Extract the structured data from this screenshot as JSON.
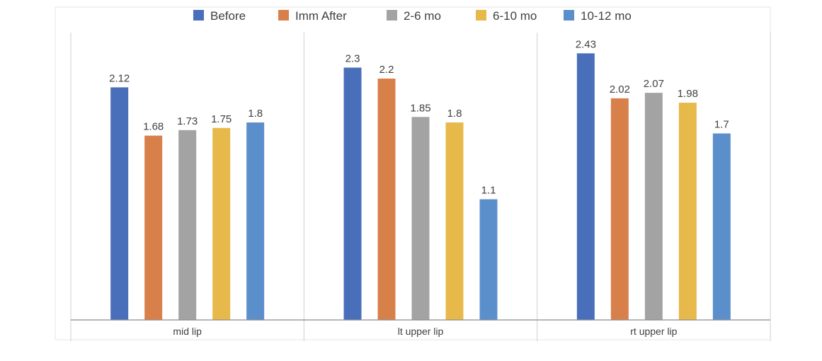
{
  "chart_data": {
    "type": "bar",
    "categories": [
      "mid lip",
      "lt upper lip",
      "rt upper lip"
    ],
    "series": [
      {
        "name": "Before",
        "color": "#4a6fba",
        "values": [
          2.12,
          2.3,
          2.43
        ]
      },
      {
        "name": "Imm After",
        "color": "#d8804a",
        "values": [
          1.68,
          2.2,
          2.02
        ]
      },
      {
        "name": "2-6 mo",
        "color": "#a3a3a3",
        "values": [
          1.73,
          1.85,
          2.07
        ]
      },
      {
        "name": "6-10 mo",
        "color": "#e7b94b",
        "values": [
          1.75,
          1.8,
          1.98
        ]
      },
      {
        "name": "10-12 mo",
        "color": "#5b8fcb",
        "values": [
          1.8,
          1.1,
          1.7
        ]
      }
    ],
    "value_labels": [
      [
        "2.12",
        "2.3",
        "2.43"
      ],
      [
        "1.68",
        "2.2",
        "2.02"
      ],
      [
        "1.73",
        "1.85",
        "2.07"
      ],
      [
        "1.75",
        "1.8",
        "1.98"
      ],
      [
        "1.8",
        "1.1",
        "1.7"
      ]
    ],
    "ylim": [
      0,
      2.5
    ],
    "legend_position": "top",
    "grid": false,
    "category_separators": true
  }
}
